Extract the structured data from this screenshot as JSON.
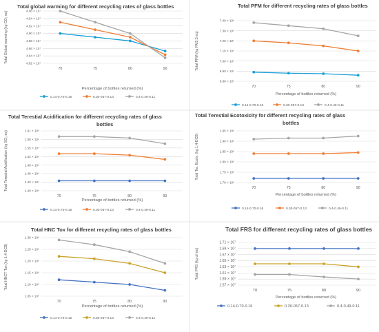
{
  "chart_data": [
    {
      "type": "line",
      "title": "Total global warming for different recycling rates of glass bottles",
      "xlabel": "Percentage of bottles returned (%)",
      "ylabel": "Total Global warming (kg CO₂ eq)",
      "categories": [
        "70",
        "75",
        "80",
        "90"
      ],
      "yticks": [
        "4.82 × 10⁷",
        "4.84 × 10⁷",
        "4.86 × 10⁷",
        "4.88 × 10⁷",
        "4.90 × 10⁷",
        "4.92 × 10⁷",
        "4.94 × 10⁷",
        "4.96 × 10⁷"
      ],
      "ylim": [
        4.82,
        4.96
      ],
      "legend_position": "bottom",
      "series": [
        {
          "name": "0.14-0.70-0.16",
          "color": "#1a9fd8",
          "values": [
            4.9,
            4.89,
            4.88,
            4.853
          ]
        },
        {
          "name": "0.30-057-0.13",
          "color": "#f07e34",
          "values": [
            4.93,
            4.91,
            4.89,
            4.843
          ]
        },
        {
          "name": "0.4-0.49-0.11",
          "color": "#a5a5a5",
          "values": [
            4.96,
            4.93,
            4.9,
            4.835
          ]
        }
      ]
    },
    {
      "type": "line",
      "title": "Total PFM for different recycling rates of glass bottles",
      "xlabel": "Percentage of bottles returned (%)",
      "ylabel": "Total PFM (kg PM2.5 eq)",
      "categories": [
        "70",
        "75",
        "80",
        "90"
      ],
      "yticks": [
        "6.80 × 10⁴",
        "6.90 × 10⁴",
        "7.00 × 10⁴",
        "7.10 × 10⁴",
        "7.20 × 10⁴",
        "7.30 × 10⁴",
        "7.40 × 10⁴"
      ],
      "ylim": [
        6.8,
        7.4
      ],
      "legend_position": "bottom",
      "series": [
        {
          "name": "0.14-0.70-0.16",
          "color": "#1a9fd8",
          "values": [
            6.89,
            6.88,
            6.875,
            6.86
          ]
        },
        {
          "name": "0.30-057-0.13",
          "color": "#f07e34",
          "values": [
            7.2,
            7.18,
            7.15,
            7.1
          ]
        },
        {
          "name": "0.4-0.49-0.11",
          "color": "#a5a5a5",
          "values": [
            7.38,
            7.35,
            7.32,
            7.25
          ]
        }
      ]
    },
    {
      "type": "line",
      "title": "Total Terestial Acidification for different recycling rates of glass bottles",
      "xlabel": "Percentage of bottles returned (%)",
      "ylabel": "Total Terestial Acidification (kg SO₂ eq)",
      "categories": [
        "70",
        "75",
        "80",
        "90"
      ],
      "yticks": [
        "1.40 × 10⁴",
        "1.43 × 10⁴",
        "1.46 × 10⁴",
        "1.49 × 10⁴",
        "1.52 × 10⁴",
        "1.55 × 10⁴",
        "1.58 × 10⁴",
        "1.61 × 10⁴"
      ],
      "ylim": [
        1.4,
        1.61
      ],
      "legend_position": "bottom",
      "series": [
        {
          "name": "0.14-0.70-0.16",
          "color": "#4472c4",
          "values": [
            1.435,
            1.435,
            1.435,
            1.435
          ]
        },
        {
          "name": "0.30-057-0.13",
          "color": "#f07e34",
          "values": [
            1.53,
            1.53,
            1.525,
            1.51
          ]
        },
        {
          "name": "0.4-0.49-0.11",
          "color": "#a5a5a5",
          "values": [
            1.59,
            1.59,
            1.585,
            1.565
          ]
        }
      ]
    },
    {
      "type": "line",
      "title": "Total Terestial Ecotoxicity for different recycling rates of glass bottles",
      "xlabel": "Percentage of bottles returned (%)",
      "ylabel": "Total Ter. Ecotx. (kg 1,4-DCB)",
      "categories": [
        "70",
        "75",
        "80",
        "90"
      ],
      "yticks": [
        "1.70 × 10⁸",
        "1.75 × 10⁸",
        "1.80 × 10⁸",
        "1.85 × 10⁸",
        "1.90 × 10⁸",
        "1.95 × 10⁸"
      ],
      "ylim": [
        1.7,
        1.95
      ],
      "legend_position": "bottom",
      "series": [
        {
          "name": "0.14-0.70-0.16",
          "color": "#4472c4",
          "values": [
            1.72,
            1.72,
            1.72,
            1.72
          ]
        },
        {
          "name": "0.30-057-0.13",
          "color": "#f07e34",
          "values": [
            1.84,
            1.84,
            1.84,
            1.845
          ]
        },
        {
          "name": "0.4-0.49-0.11",
          "color": "#a5a5a5",
          "values": [
            1.91,
            1.915,
            1.915,
            1.925
          ]
        }
      ]
    },
    {
      "type": "line",
      "title": "Total HNC Tox for different recycling rates of glass bottles",
      "xlabel": "Percentage of bottles returned (%)",
      "ylabel": "Total HNCT Tox (kg 1,4-DCB)",
      "categories": [
        "70",
        "75",
        "80",
        "90"
      ],
      "yticks": [
        "1.05 × 10⁹",
        "1.10 × 10⁹",
        "1.15 × 10⁹",
        "1.20 × 10⁹",
        "1.25 × 10⁹",
        "1.30 × 10⁹"
      ],
      "ylim": [
        1.05,
        1.3
      ],
      "legend_position": "bottom",
      "series": [
        {
          "name": "0.14-0.70-0.16",
          "color": "#4472c4",
          "values": [
            1.12,
            1.11,
            1.1,
            1.075
          ]
        },
        {
          "name": "0.30-057-0.13",
          "color": "#c9a227",
          "values": [
            1.22,
            1.21,
            1.19,
            1.15
          ]
        },
        {
          "name": "0.4-0.49-0.11",
          "color": "#a5a5a5",
          "values": [
            1.29,
            1.27,
            1.24,
            1.19
          ]
        }
      ]
    },
    {
      "type": "line",
      "title": "Total FRS for different recycling rates of glass bottles",
      "xlabel": "Percentage of bottles returned (%)",
      "ylabel": "Total FRS (kg oil eq)",
      "categories": [
        "70",
        "75",
        "80",
        "90"
      ],
      "yticks": [
        "1.57 × 10⁷",
        "1.59 × 10⁷",
        "1.61 × 10⁷",
        "1.63 × 10⁷",
        "1.65 × 10⁷",
        "1.67 × 10⁷",
        "1.69 × 10⁷",
        "1.71 × 10⁷"
      ],
      "ylim": [
        1.57,
        1.71
      ],
      "legend_position": "bottom",
      "series": [
        {
          "name": "0.14-0.70-0.16",
          "color": "#4472c4",
          "values": [
            1.69,
            1.69,
            1.69,
            1.69
          ]
        },
        {
          "name": "0.30-057-0.13",
          "color": "#c9a227",
          "values": [
            1.64,
            1.64,
            1.64,
            1.63
          ]
        },
        {
          "name": "0.4-0.49-0.11",
          "color": "#a5a5a5",
          "values": [
            1.605,
            1.605,
            1.597,
            1.59
          ]
        }
      ]
    }
  ]
}
